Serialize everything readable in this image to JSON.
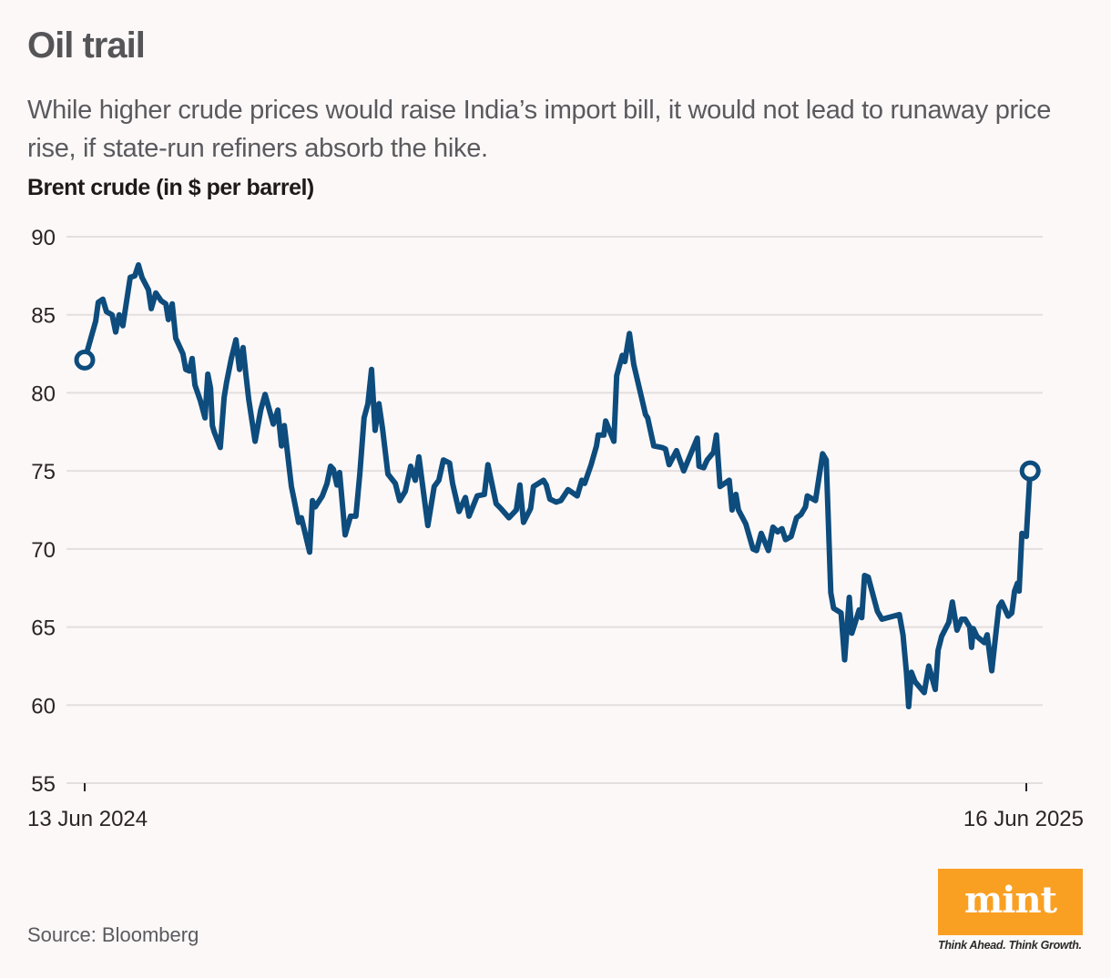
{
  "header": {
    "title": "Oil trail",
    "subtitle": "While higher crude prices would raise India’s import bill, it would not lead to runaway price rise, if state-run refiners absorb the hike.",
    "unit_label": "Brent crude (in $ per barrel)"
  },
  "footer": {
    "source": "Source: Bloomberg",
    "logo_text": "mint",
    "logo_tagline": "Think Ahead. Think Growth.",
    "logo_color": "#f9a023"
  },
  "chart_data": {
    "type": "line",
    "title": "Brent crude (in $ per barrel)",
    "xlabel": "",
    "ylabel": "",
    "ylim": [
      55,
      90
    ],
    "yticks": [
      55,
      60,
      65,
      70,
      75,
      80,
      85,
      90
    ],
    "grid": true,
    "x_tick_labels": [
      "13 Jun 2024",
      "16 Jun 2025"
    ],
    "x_range_days": [
      0,
      368
    ],
    "line_color": "#0d4c7c",
    "endpoint_markers": true,
    "series": [
      {
        "name": "Brent crude",
        "x_days": [
          0,
          4.3,
          5.3,
          7.1,
          8.5,
          10.7,
          12.1,
          13.5,
          14.9,
          17.8,
          19.6,
          21.0,
          22.4,
          24.9,
          26.0,
          27.8,
          29.9,
          31.7,
          32.7,
          34.2,
          35.6,
          38.4,
          39.5,
          40.9,
          42.0,
          43.1,
          45.2,
          47.0,
          48.1,
          49.2,
          49.9,
          50.6,
          53.0,
          54.5,
          55.5,
          57.3,
          59.1,
          60.5,
          61.9,
          63.0,
          64.1,
          66.6,
          68.8,
          70.5,
          73.7,
          75.5,
          76.9,
          78.0,
          80.8,
          81.8,
          83.6,
          84.7,
          87.9,
          89.0,
          90.1,
          92.9,
          94.7,
          96.1,
          97.2,
          98.6,
          99.6,
          101.8,
          103.9,
          106.0,
          107.5,
          109.2,
          110.7,
          112.1,
          113.5,
          115.0,
          116.4,
          118.5,
          121.4,
          123.1,
          125.3,
          127.4,
          129.2,
          130.6,
          134.1,
          136.6,
          138.4,
          140.2,
          142.6,
          143.8,
          146.3,
          148.8,
          150.2,
          153.4,
          156.2,
          157.6,
          160.8,
          162.6,
          165.8,
          168.7,
          170.1,
          171.5,
          174.3,
          175.4,
          179.3,
          180.4,
          181.8,
          184.3,
          186.1,
          188.9,
          192.5,
          194.3,
          195.4,
          197.9,
          200.0,
          200.7,
          202.9,
          203.6,
          206.8,
          207.9,
          210.1,
          211.1,
          212.9,
          214.6,
          217.5,
          219.2,
          220.0,
          222.4,
          225.6,
          227.0,
          228.4,
          231.3,
          234.1,
          239.4,
          240.1,
          241.9,
          243.3,
          245.8,
          246.9,
          248.3,
          251.9,
          253.0,
          254.5,
          255.5,
          258.4,
          261.2,
          262.6,
          264.4,
          267.2,
          269.0,
          270.8,
          272.5,
          273.9,
          276.1,
          278.2,
          279.9,
          281.7,
          282.4,
          285.6,
          288.4,
          289.8,
          291.6,
          292.7,
          295.6,
          297.0,
          298.8,
          299.8,
          302.7,
          303.7,
          304.8,
          306.2,
          309.8,
          311.6,
          318.4,
          319.8,
          321.2,
          322.0,
          323.1,
          324.5,
          328.1,
          329.9,
          332.4,
          333.5,
          334.9,
          337.7,
          339.1,
          340.9,
          342.7,
          344.1,
          345.9,
          346.6,
          347.3,
          348.7,
          351.6,
          352.7,
          354.5,
          356.2,
          357.3,
          358.4,
          360.9,
          362.3,
          363.4,
          364.5,
          365.2,
          366.3,
          368.0,
          369.5
        ],
        "values": [
          82.1,
          84.6,
          85.8,
          86.0,
          85.2,
          85.0,
          83.9,
          85.0,
          84.3,
          87.4,
          87.5,
          88.2,
          87.4,
          86.6,
          85.4,
          86.4,
          85.9,
          85.7,
          84.7,
          85.7,
          83.5,
          82.5,
          81.5,
          81.4,
          82.2,
          80.5,
          79.5,
          78.4,
          81.2,
          80.3,
          77.9,
          77.5,
          76.5,
          79.7,
          80.7,
          82.2,
          83.4,
          81.5,
          82.9,
          81.2,
          79.6,
          76.9,
          78.9,
          79.9,
          78.0,
          78.9,
          76.6,
          77.9,
          74.0,
          73.2,
          71.7,
          72.0,
          69.8,
          73.1,
          72.7,
          73.4,
          74.2,
          75.3,
          75.1,
          74.1,
          74.9,
          70.9,
          72.1,
          72.1,
          74.8,
          78.4,
          79.3,
          81.5,
          77.6,
          79.3,
          77.7,
          74.8,
          74.2,
          73.1,
          73.7,
          75.3,
          74.4,
          75.9,
          71.5,
          74.0,
          74.4,
          75.7,
          75.5,
          74.2,
          72.4,
          73.3,
          72.1,
          73.4,
          73.5,
          75.4,
          72.9,
          72.6,
          72.0,
          72.5,
          74.1,
          71.7,
          72.6,
          74.0,
          74.4,
          74.1,
          73.2,
          73.0,
          73.1,
          73.8,
          73.4,
          74.4,
          74.2,
          75.4,
          76.6,
          77.3,
          77.3,
          78.2,
          76.9,
          81.1,
          82.4,
          82.0,
          83.8,
          81.8,
          79.8,
          78.6,
          78.4,
          76.6,
          76.5,
          76.4,
          75.4,
          76.3,
          75.0,
          77.1,
          75.3,
          75.2,
          75.7,
          76.2,
          77.3,
          74.0,
          74.4,
          72.5,
          73.5,
          72.5,
          71.6,
          70.0,
          69.9,
          71.0,
          69.9,
          71.4,
          71.1,
          71.3,
          70.6,
          70.8,
          72.0,
          72.2,
          72.7,
          73.4,
          73.1,
          76.1,
          75.7,
          67.2,
          66.2,
          65.9,
          62.9,
          66.9,
          64.6,
          66.1,
          65.6,
          68.3,
          68.2,
          66.0,
          65.5,
          65.8,
          64.5,
          62.0,
          59.9,
          62.1,
          61.5,
          60.8,
          62.5,
          61.0,
          63.5,
          64.4,
          65.3,
          66.6,
          64.8,
          65.5,
          65.5,
          65.0,
          63.7,
          64.9,
          64.4,
          64.0,
          64.5,
          62.2,
          64.7,
          66.3,
          66.6,
          65.7,
          65.9,
          67.3,
          67.8,
          67.3,
          71.0,
          70.8,
          75.0,
          73.3,
          73.3
        ]
      }
    ]
  }
}
